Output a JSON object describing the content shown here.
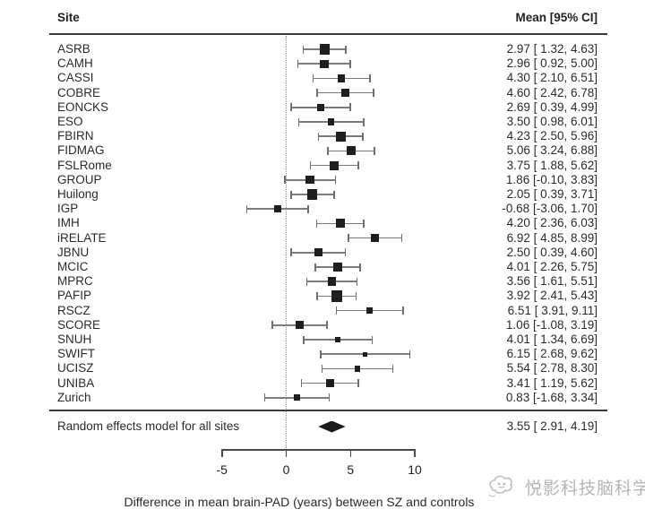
{
  "header": {
    "site_col": "Site",
    "mean_col": "Mean  [95% CI]"
  },
  "chart_data": {
    "type": "forest",
    "title": "",
    "xlabel": "Difference in mean brain-PAD (years) between SZ and controls",
    "x_ticks": [
      "-5",
      "0",
      "5",
      "10"
    ],
    "x_tick_values": [
      -5,
      0,
      5,
      10
    ],
    "x_range": [
      -5,
      10
    ],
    "zero_reference_line": 0,
    "grid": false,
    "sites": [
      {
        "label": "ASRB",
        "mean": 2.97,
        "ci_low": 1.32,
        "ci_high": 4.63,
        "text": "2.97 [ 1.32, 4.63]"
      },
      {
        "label": "CAMH",
        "mean": 2.96,
        "ci_low": 0.92,
        "ci_high": 5.0,
        "text": "2.96 [ 0.92, 5.00]"
      },
      {
        "label": "CASSI",
        "mean": 4.3,
        "ci_low": 2.1,
        "ci_high": 6.51,
        "text": "4.30 [ 2.10, 6.51]"
      },
      {
        "label": "COBRE",
        "mean": 4.6,
        "ci_low": 2.42,
        "ci_high": 6.78,
        "text": "4.60 [ 2.42, 6.78]"
      },
      {
        "label": "EONCKS",
        "mean": 2.69,
        "ci_low": 0.39,
        "ci_high": 4.99,
        "text": "2.69 [ 0.39, 4.99]"
      },
      {
        "label": "ESO",
        "mean": 3.5,
        "ci_low": 0.98,
        "ci_high": 6.01,
        "text": "3.50 [ 0.98, 6.01]"
      },
      {
        "label": "FBIRN",
        "mean": 4.23,
        "ci_low": 2.5,
        "ci_high": 5.96,
        "text": "4.23 [ 2.50, 5.96]"
      },
      {
        "label": "FIDMAG",
        "mean": 5.06,
        "ci_low": 3.24,
        "ci_high": 6.88,
        "text": "5.06 [ 3.24, 6.88]"
      },
      {
        "label": "FSLRome",
        "mean": 3.75,
        "ci_low": 1.88,
        "ci_high": 5.62,
        "text": "3.75 [ 1.88, 5.62]"
      },
      {
        "label": "GROUP",
        "mean": 1.86,
        "ci_low": -0.1,
        "ci_high": 3.83,
        "text": "1.86 [-0.10, 3.83]"
      },
      {
        "label": "Huilong",
        "mean": 2.05,
        "ci_low": 0.39,
        "ci_high": 3.71,
        "text": "2.05 [ 0.39, 3.71]"
      },
      {
        "label": "IGP",
        "mean": -0.68,
        "ci_low": -3.06,
        "ci_high": 1.7,
        "text": "-0.68 [-3.06, 1.70]"
      },
      {
        "label": "IMH",
        "mean": 4.2,
        "ci_low": 2.36,
        "ci_high": 6.03,
        "text": "4.20 [ 2.36, 6.03]"
      },
      {
        "label": "iRELATE",
        "mean": 6.92,
        "ci_low": 4.85,
        "ci_high": 8.99,
        "text": "6.92 [ 4.85, 8.99]"
      },
      {
        "label": "JBNU",
        "mean": 2.5,
        "ci_low": 0.39,
        "ci_high": 4.6,
        "text": "2.50 [ 0.39, 4.60]"
      },
      {
        "label": "MCIC",
        "mean": 4.01,
        "ci_low": 2.26,
        "ci_high": 5.75,
        "text": "4.01 [ 2.26, 5.75]"
      },
      {
        "label": "MPRC",
        "mean": 3.56,
        "ci_low": 1.61,
        "ci_high": 5.51,
        "text": "3.56 [ 1.61, 5.51]"
      },
      {
        "label": "PAFIP",
        "mean": 3.92,
        "ci_low": 2.41,
        "ci_high": 5.43,
        "text": "3.92 [ 2.41, 5.43]"
      },
      {
        "label": "RSCZ",
        "mean": 6.51,
        "ci_low": 3.91,
        "ci_high": 9.11,
        "text": "6.51 [ 3.91, 9.11]"
      },
      {
        "label": "SCORE",
        "mean": 1.06,
        "ci_low": -1.08,
        "ci_high": 3.19,
        "text": "1.06 [-1.08, 3.19]"
      },
      {
        "label": "SNUH",
        "mean": 4.01,
        "ci_low": 1.34,
        "ci_high": 6.69,
        "text": "4.01 [ 1.34, 6.69]"
      },
      {
        "label": "SWIFT",
        "mean": 6.15,
        "ci_low": 2.68,
        "ci_high": 9.62,
        "text": "6.15 [ 2.68, 9.62]"
      },
      {
        "label": "UCISZ",
        "mean": 5.54,
        "ci_low": 2.78,
        "ci_high": 8.3,
        "text": "5.54 [ 2.78, 8.30]"
      },
      {
        "label": "UNIBA",
        "mean": 3.41,
        "ci_low": 1.19,
        "ci_high": 5.62,
        "text": "3.41 [ 1.19, 5.62]"
      },
      {
        "label": "Zurich",
        "mean": 0.83,
        "ci_low": -1.68,
        "ci_high": 3.34,
        "text": "0.83 [-1.68, 3.34]"
      }
    ],
    "summary": {
      "label": "Random effects model for all sites",
      "mean": 3.55,
      "ci_low": 2.91,
      "ci_high": 4.19,
      "text": "3.55 [ 2.91, 4.19]"
    }
  },
  "watermark": {
    "text": "悦影科技脑科学"
  },
  "colors": {
    "text": "#2b2b2b",
    "marker": "#1e1e1e",
    "whisker": "#7d7d7d",
    "rule": "#3a3a3a",
    "watermark": "#b5b5b5"
  }
}
